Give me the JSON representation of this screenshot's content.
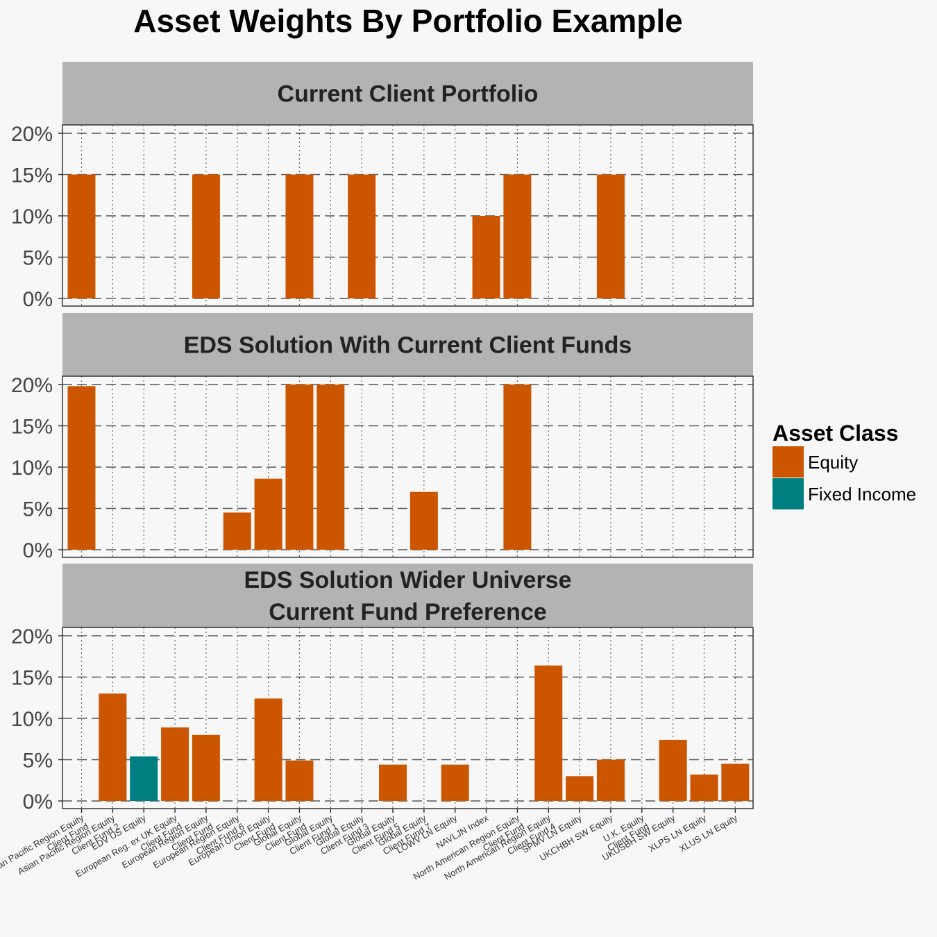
{
  "chart_data": {
    "type": "bar",
    "title": "Asset Weights By Portfolio Example",
    "legend": {
      "title": "Asset Class",
      "position": "right",
      "items": [
        {
          "label": "Equity",
          "color": "#cc5500"
        },
        {
          "label": "Fixed Income",
          "color": "#007f80"
        }
      ]
    },
    "colors": {
      "Equity": "#cc5500",
      "Fixed Income": "#007f80"
    },
    "ylim": [
      0,
      0.2
    ],
    "yticks": [
      0,
      0.05,
      0.1,
      0.15,
      0.2
    ],
    "ytick_labels": [
      "0%",
      "5%",
      "10%",
      "15%",
      "20%"
    ],
    "grid": true,
    "categories": [
      "Asian Pacific Region Equity\nClient Fund",
      "Asian Pacific Region Equity\nClient Fund 2",
      "EDV US Equity",
      "European Reg. ex UK Equity\nClient Fund",
      "European Region Equity\nClient Fund",
      "European Region Equity\nClient Fund 6",
      "European Union Equity\nClient Fund",
      "Global Equity\nClient Fund",
      "Global Equity\nClient Fund 1",
      "Global Equity\nClient Fund 3",
      "Global Equity\nClient Fund 5",
      "Global Equity\nClient Fund 7",
      "LOWV LN Equity",
      "NAVLJN Index",
      "North American Region Equity\nClient Fund",
      "North American Region Equity\nClient Fund 4",
      "SPMV LN Equity",
      "UKCHBH SW Equity",
      "U.K. Equity\nClient Fund",
      "UKUSBH SW Equity",
      "XLPS LN Equity",
      "XLUS LN Equity"
    ],
    "panels": [
      {
        "title": "Current Client Portfolio",
        "values": [
          0.15,
          0,
          0,
          0,
          0.15,
          0,
          0,
          0.15,
          0,
          0.15,
          0,
          0,
          0,
          0.1,
          0.15,
          0,
          0,
          0.15,
          0,
          0,
          0,
          0
        ],
        "classes": [
          "Equity",
          "Equity",
          "Fixed Income",
          "Equity",
          "Equity",
          "Equity",
          "Equity",
          "Equity",
          "Equity",
          "Equity",
          "Equity",
          "Equity",
          "Equity",
          "Equity",
          "Equity",
          "Equity",
          "Equity",
          "Equity",
          "Equity",
          "Equity",
          "Equity",
          "Equity"
        ]
      },
      {
        "title": "EDS Solution With Current Client Funds",
        "values": [
          0.198,
          0,
          0,
          0,
          0,
          0.045,
          0.086,
          0.2,
          0.2,
          0,
          0,
          0.07,
          0,
          0,
          0.2,
          0,
          0,
          0,
          0,
          0,
          0,
          0
        ],
        "classes": [
          "Equity",
          "Equity",
          "Fixed Income",
          "Equity",
          "Equity",
          "Equity",
          "Equity",
          "Equity",
          "Equity",
          "Equity",
          "Equity",
          "Equity",
          "Equity",
          "Equity",
          "Equity",
          "Equity",
          "Equity",
          "Equity",
          "Equity",
          "Equity",
          "Equity",
          "Equity"
        ]
      },
      {
        "title": "EDS Solution Wider Universe\nCurrent Fund Preference",
        "values": [
          0,
          0.13,
          0.054,
          0.089,
          0.08,
          0,
          0.124,
          0.049,
          0,
          0,
          0.044,
          0,
          0.044,
          0,
          0,
          0.164,
          0.03,
          0.05,
          0,
          0.074,
          0.032,
          0.045
        ],
        "classes": [
          "Equity",
          "Equity",
          "Fixed Income",
          "Equity",
          "Equity",
          "Equity",
          "Equity",
          "Equity",
          "Equity",
          "Equity",
          "Equity",
          "Equity",
          "Equity",
          "Equity",
          "Equity",
          "Equity",
          "Equity",
          "Equity",
          "Equity",
          "Equity",
          "Equity",
          "Equity"
        ]
      }
    ]
  }
}
